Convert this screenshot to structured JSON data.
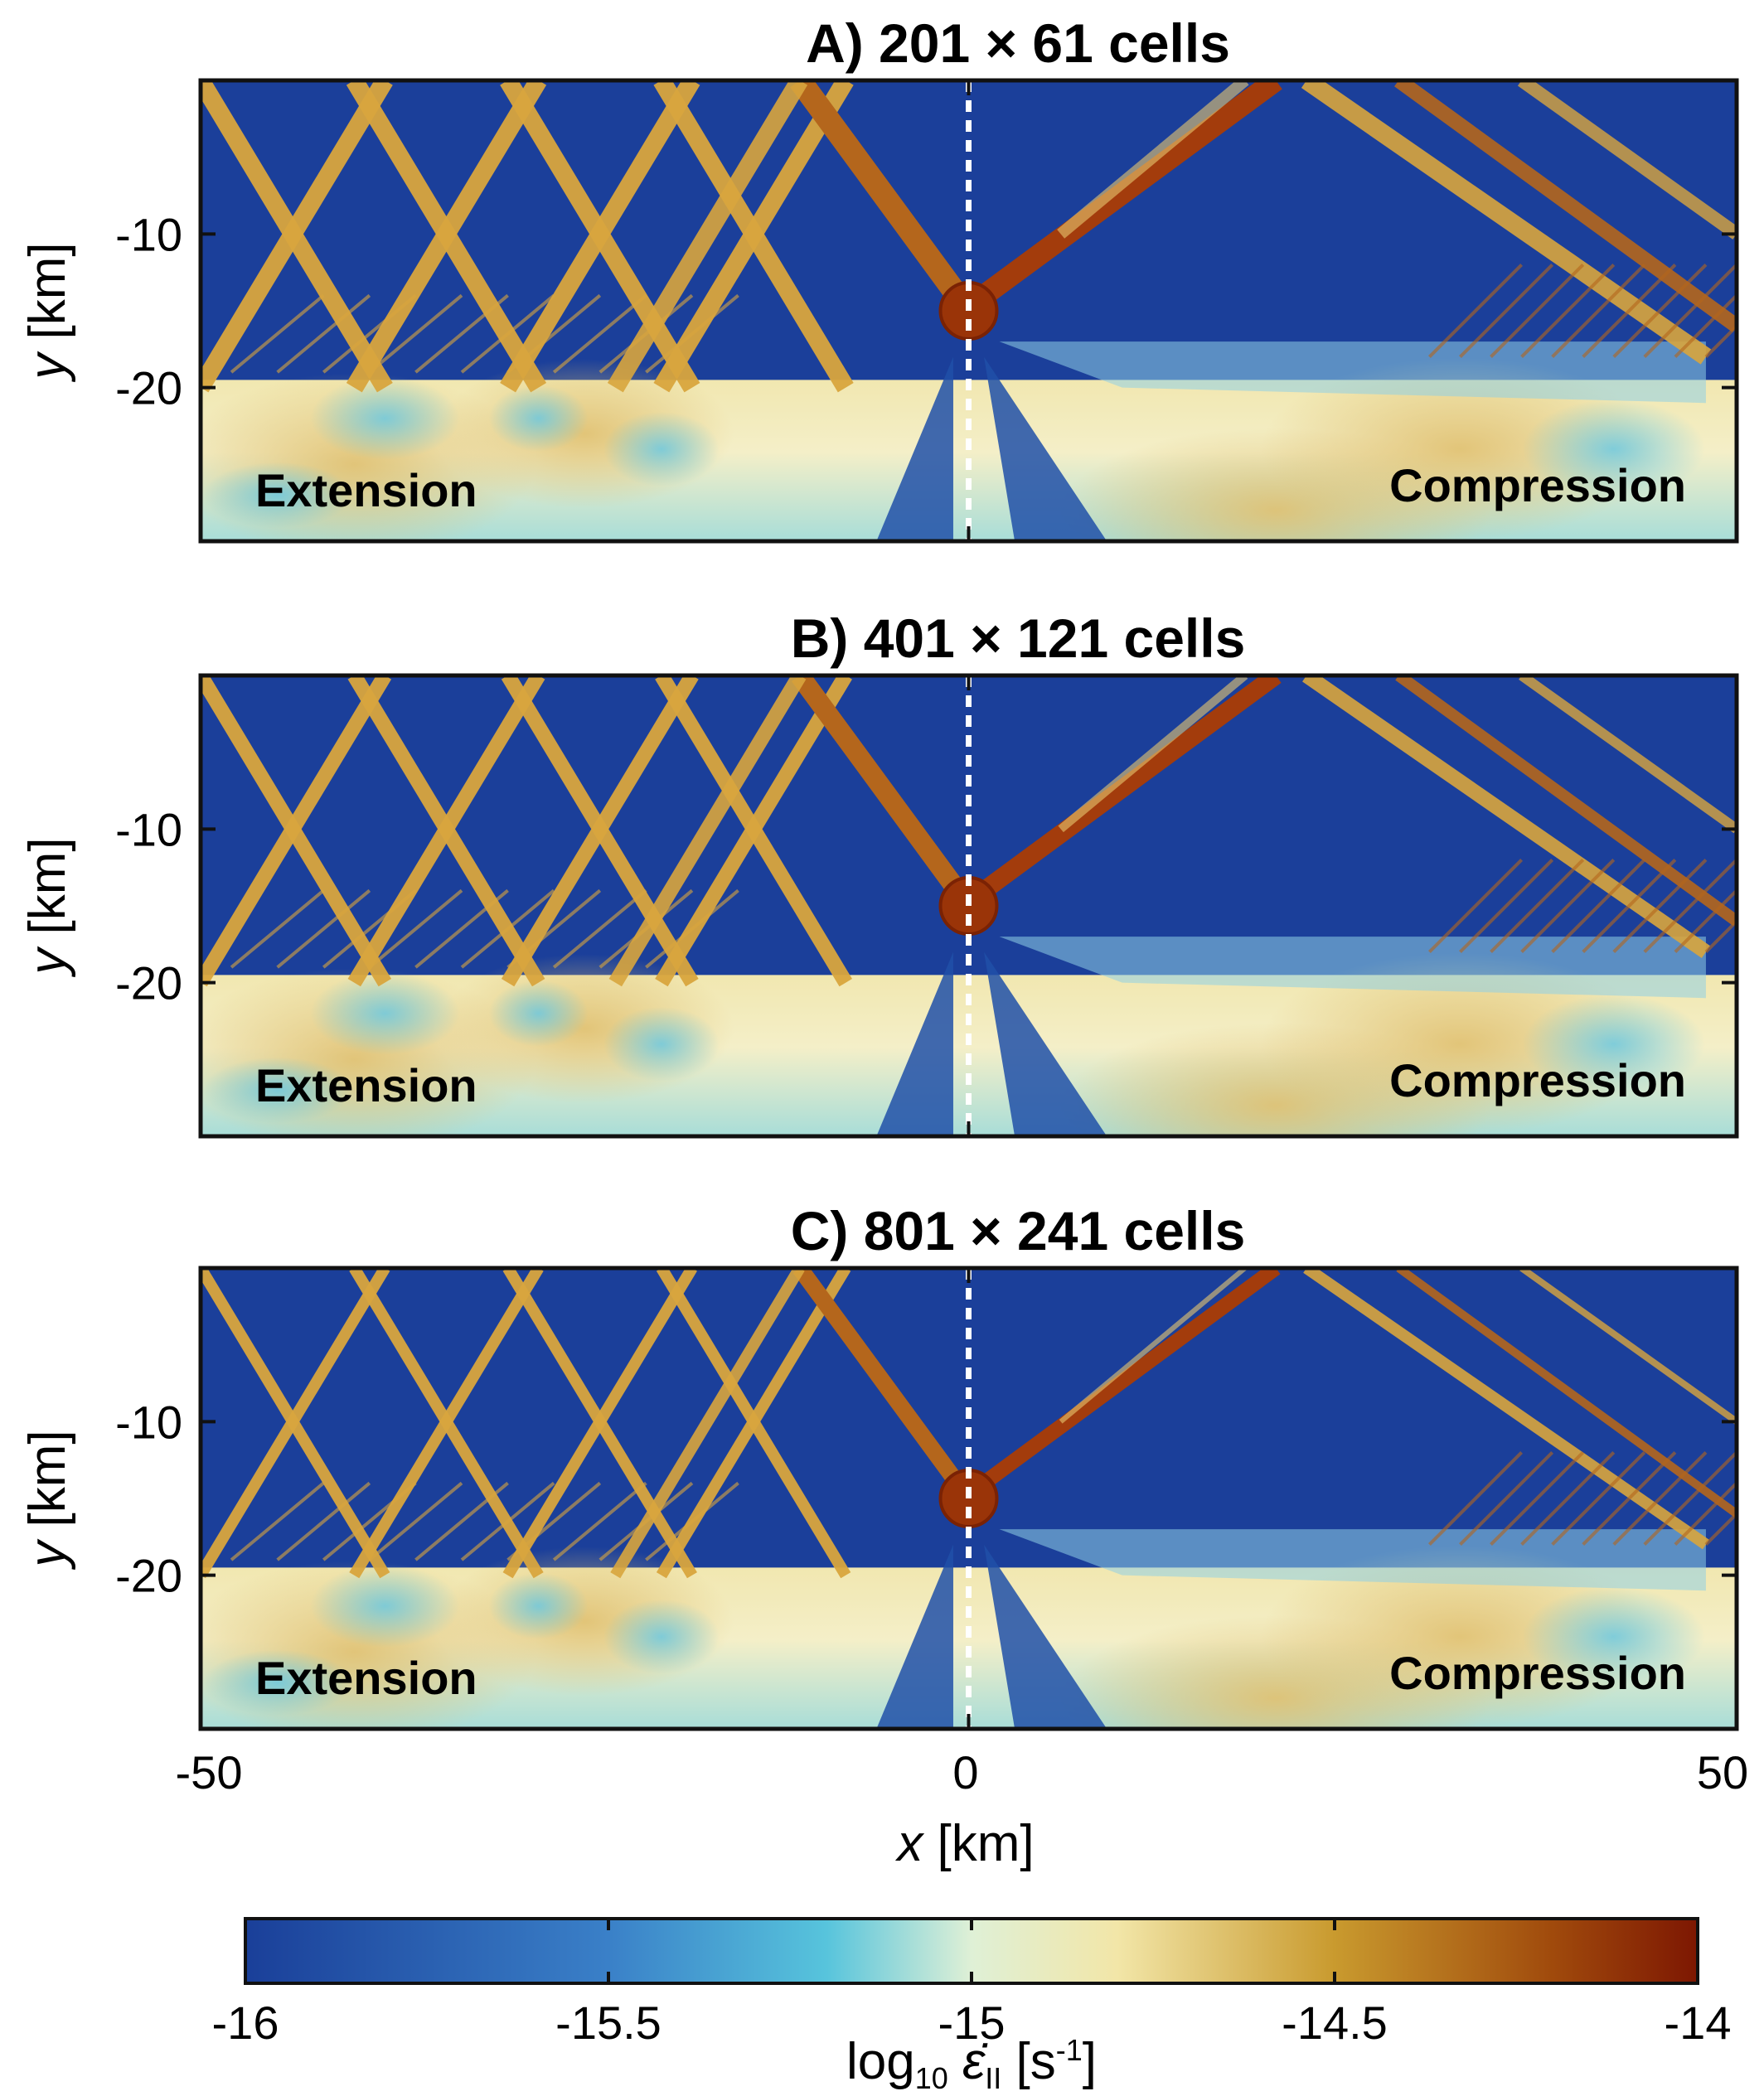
{
  "chart_data": {
    "type": "heatmap",
    "panels": [
      {
        "title": "A) 201 × 61 cells",
        "left_label": "Extension",
        "right_label": "Compression"
      },
      {
        "title": "B) 401 × 121 cells",
        "left_label": "Extension",
        "right_label": "Compression"
      },
      {
        "title": "C) 801 × 241 cells",
        "left_label": "Extension",
        "right_label": "Compression"
      }
    ],
    "xlabel_var": "x",
    "xlabel_unit": " [km]",
    "ylabel_var": "y",
    "ylabel_unit": " [km]",
    "xlim": [
      -50,
      50
    ],
    "ylim": [
      -30,
      0
    ],
    "xticks": [
      "-50",
      "0",
      "50"
    ],
    "yticks": [
      "-10",
      "-20"
    ],
    "colorbar": {
      "label_prefix": "log",
      "label_sub": "10",
      "label_var": "ε̇",
      "label_var_sub": "II",
      "label_unit": " [s",
      "label_unit_sup": "-1",
      "label_close": "]",
      "range": [
        -16,
        -14
      ],
      "ticks": [
        "-16",
        "-15.5",
        "-15",
        "-14.5",
        "-14"
      ]
    },
    "colors": {
      "low": "#1a3f99",
      "mid_low": "#4fc3dc",
      "mid": "#f4f0c8",
      "mid_high": "#c99a2e",
      "high": "#8a1a02"
    }
  }
}
